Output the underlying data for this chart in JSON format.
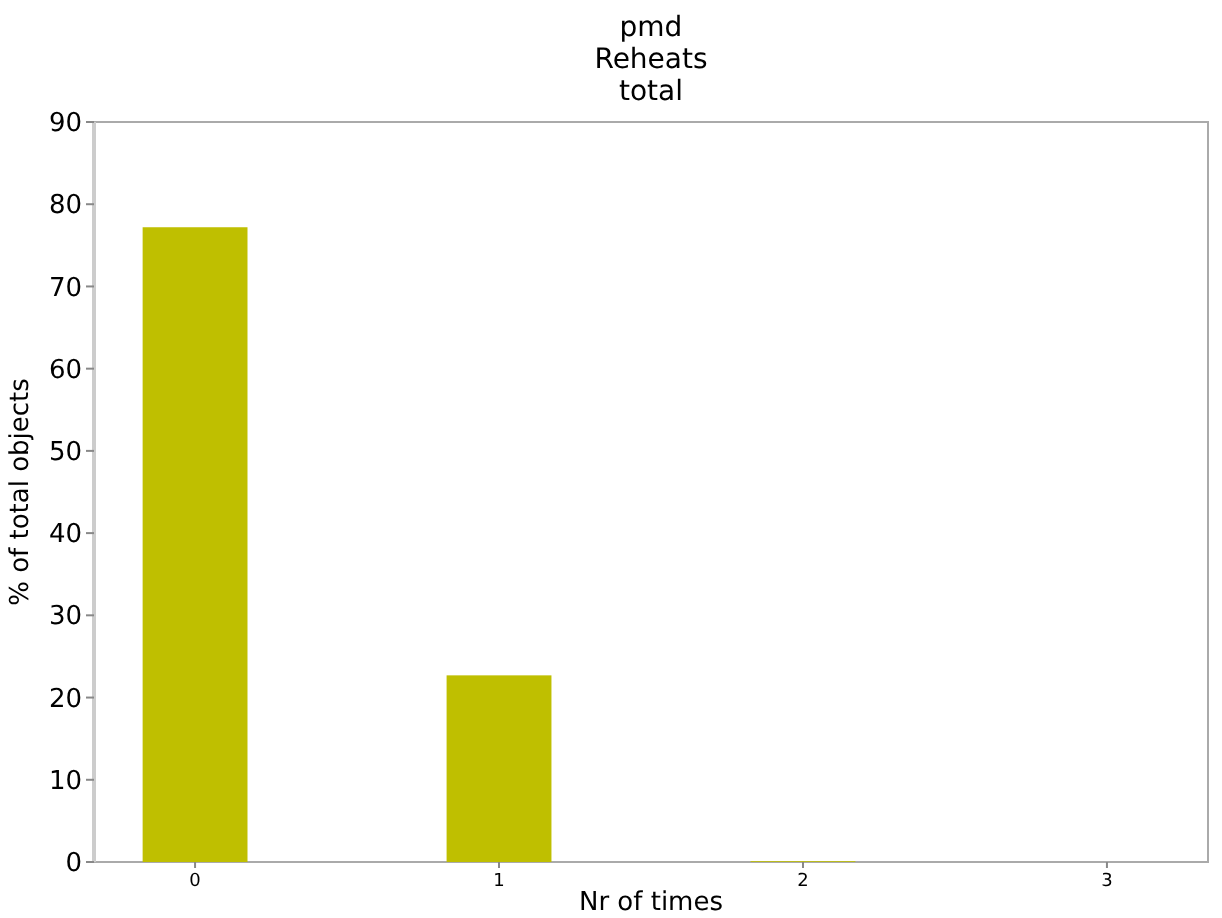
{
  "chart_data": {
    "type": "bar",
    "title": "pmd\nReheats\ntotal",
    "xlabel": "Nr of times",
    "ylabel": "% of total objects",
    "categories": [
      "0",
      "1",
      "2",
      "3"
    ],
    "values": [
      77.2,
      22.7,
      0.1,
      0
    ],
    "color": "#bfbf00",
    "ylim": [
      0,
      90
    ],
    "yticks": [
      0,
      10,
      20,
      30,
      40,
      50,
      60,
      70,
      80,
      90
    ],
    "grid": false
  }
}
